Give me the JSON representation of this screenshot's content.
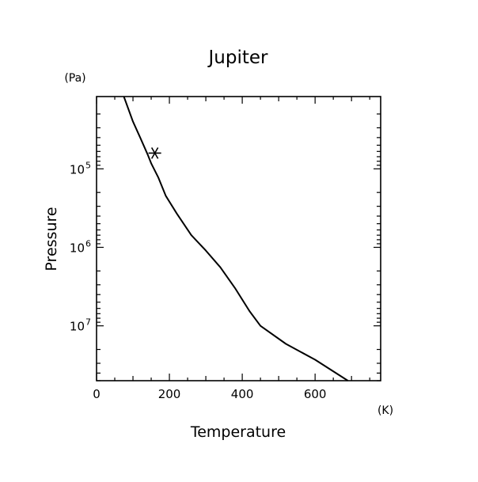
{
  "chart_data": {
    "type": "line",
    "title": "Jupiter",
    "xlabel": "Temperature",
    "ylabel": "Pressure",
    "x_unit": "(K)",
    "y_unit": "(Pa)",
    "xlim": [
      0,
      780
    ],
    "ylim": [
      12000,
      50000000
    ],
    "y_scale": "log",
    "y_inverted": true,
    "x_ticks": [
      0,
      200,
      400,
      600
    ],
    "x_tick_labels": [
      "0",
      "200",
      "400",
      "600"
    ],
    "y_ticks": [
      100000,
      1000000,
      10000000
    ],
    "y_tick_labels": [
      {
        "base": "10",
        "exp": "5"
      },
      {
        "base": "10",
        "exp": "6"
      },
      {
        "base": "10",
        "exp": "7"
      }
    ],
    "grid": false,
    "line_color": "#000000",
    "series": [
      {
        "x": [
          75,
          100,
          120,
          140,
          150,
          170,
          190,
          220,
          260,
          300,
          340,
          380,
          420,
          450,
          520,
          600,
          690
        ],
        "y": [
          12000,
          25000,
          40000,
          65000,
          85000,
          130000,
          220000,
          370000,
          700000,
          1100000,
          1800000,
          3300000,
          6500000,
          10000000,
          17000000,
          27000000,
          50000000
        ]
      }
    ],
    "markers": [
      {
        "x": 160,
        "y": 63000,
        "symbol": "asterisk"
      }
    ]
  }
}
